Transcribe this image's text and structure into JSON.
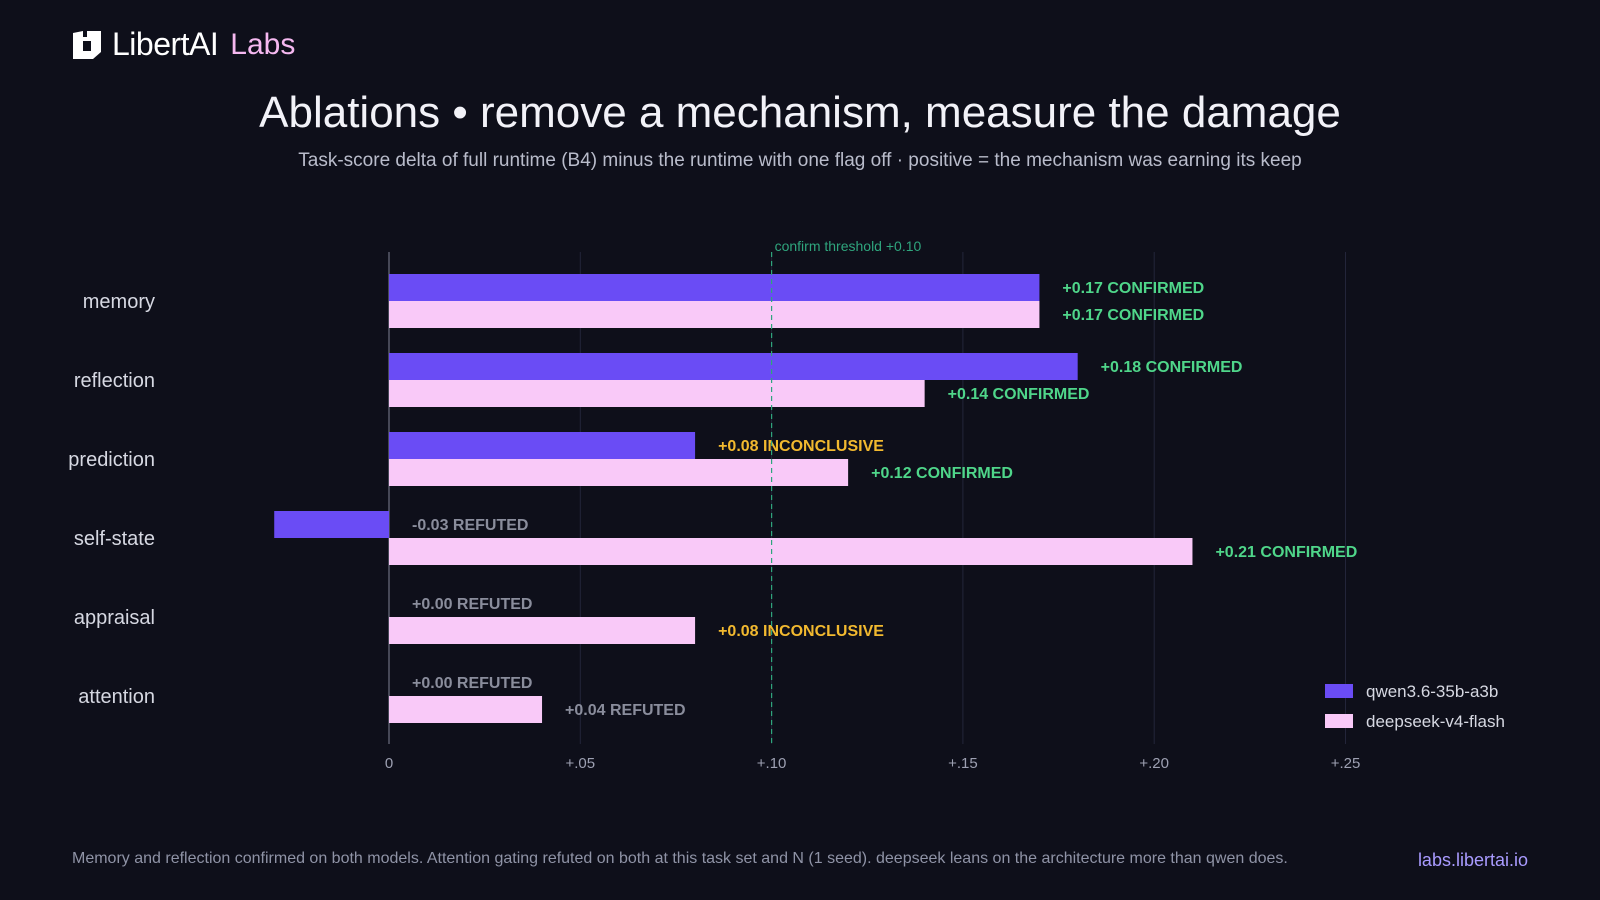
{
  "brand": {
    "name": "LibertAI",
    "suffix": "Labs",
    "logo_icon": "libertai-logo-icon"
  },
  "header": {
    "title": "Ablations • remove a mechanism, measure the damage",
    "subtitle": "Task-score delta of full runtime (B4) minus the runtime with one flag off  ·  positive = the mechanism was earning its keep"
  },
  "footer": {
    "note": "Memory and reflection confirmed on both models. Attention gating refuted on both at this task set and N (1 seed). deepseek leans on the architecture more than qwen does.",
    "link": "labs.libertai.io"
  },
  "colors": {
    "background": "#0e0f1a",
    "qwen": "#6a4cf5",
    "deepseek": "#f9c9f8",
    "confirmed": "#4fd68a",
    "inconclusive": "#f2b92f",
    "refuted": "#8a8d9c",
    "threshold": "#2fa57d"
  },
  "chart_data": {
    "type": "bar",
    "orientation": "horizontal",
    "categories": [
      "memory",
      "reflection",
      "prediction",
      "self-state",
      "appraisal",
      "attention"
    ],
    "series": [
      {
        "name": "qwen3.6-35b-a3b",
        "values": [
          0.17,
          0.18,
          0.08,
          -0.03,
          0.0,
          0.0
        ],
        "labels": [
          "+0.17",
          "+0.18",
          "+0.08",
          "-0.03",
          "+0.00",
          "+0.00"
        ],
        "verdicts": [
          "CONFIRMED",
          "CONFIRMED",
          "INCONCLUSIVE",
          "REFUTED",
          "REFUTED",
          "REFUTED"
        ]
      },
      {
        "name": "deepseek-v4-flash",
        "values": [
          0.17,
          0.14,
          0.12,
          0.21,
          0.08,
          0.04
        ],
        "labels": [
          "+0.17",
          "+0.14",
          "+0.12",
          "+0.21",
          "+0.08",
          "+0.04"
        ],
        "verdicts": [
          "CONFIRMED",
          "CONFIRMED",
          "CONFIRMED",
          "CONFIRMED",
          "INCONCLUSIVE",
          "REFUTED"
        ]
      }
    ],
    "xlim": [
      -0.03,
      0.25
    ],
    "xticks": [
      0,
      0.05,
      0.1,
      0.15,
      0.2,
      0.25
    ],
    "xtick_labels": [
      "0",
      "+.05",
      "+.10",
      "+.15",
      "+.20",
      "+.25"
    ],
    "threshold": {
      "value": 0.1,
      "label": "confirm threshold +0.10"
    },
    "grid": true,
    "legend_position": "bottom-right"
  }
}
